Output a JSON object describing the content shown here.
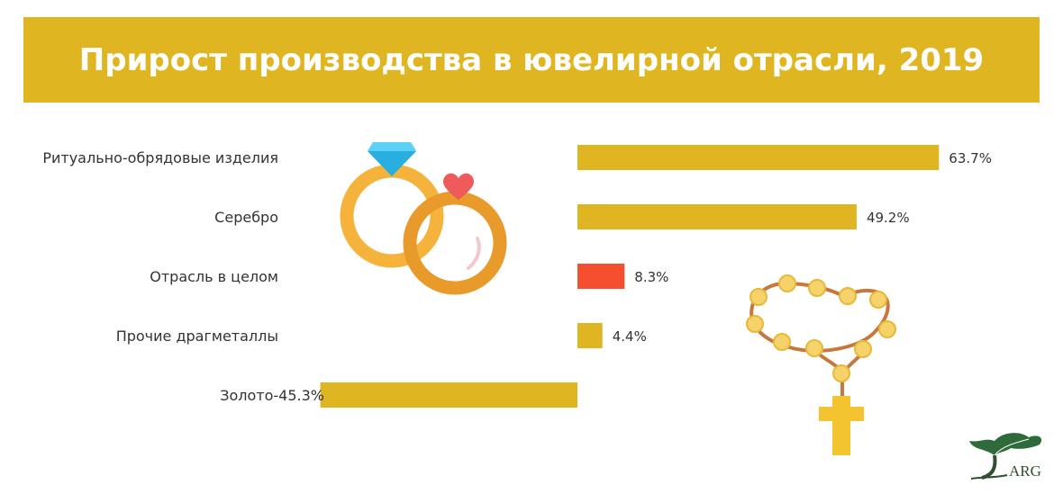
{
  "colors": {
    "banner": "#dfb521",
    "bar": "#dfb521",
    "bar_highlight": "#f4502f",
    "label": "#333333"
  },
  "chart_data": {
    "type": "bar",
    "orientation": "horizontal",
    "title": "Прирост производства в ювелирной отрасли, 2019",
    "categories": [
      "Ритуально-обрядовые изделия",
      "Серебро",
      "Отрасль в целом",
      "Прочие драгметаллы",
      "Золото"
    ],
    "values": [
      63.7,
      49.2,
      8.3,
      4.4,
      -45.3
    ],
    "value_labels": [
      "63.7%",
      "49.2%",
      "8.3%",
      "4.4%",
      "-45.3%"
    ],
    "highlight_category": "Отрасль в целом",
    "unit": "%",
    "grid": false,
    "legend": "none"
  },
  "icons": {
    "rings": "wedding-rings-icon",
    "rosary": "rosary-icon",
    "logo": "tree-logo-icon"
  },
  "logo": {
    "text": "ARG"
  }
}
